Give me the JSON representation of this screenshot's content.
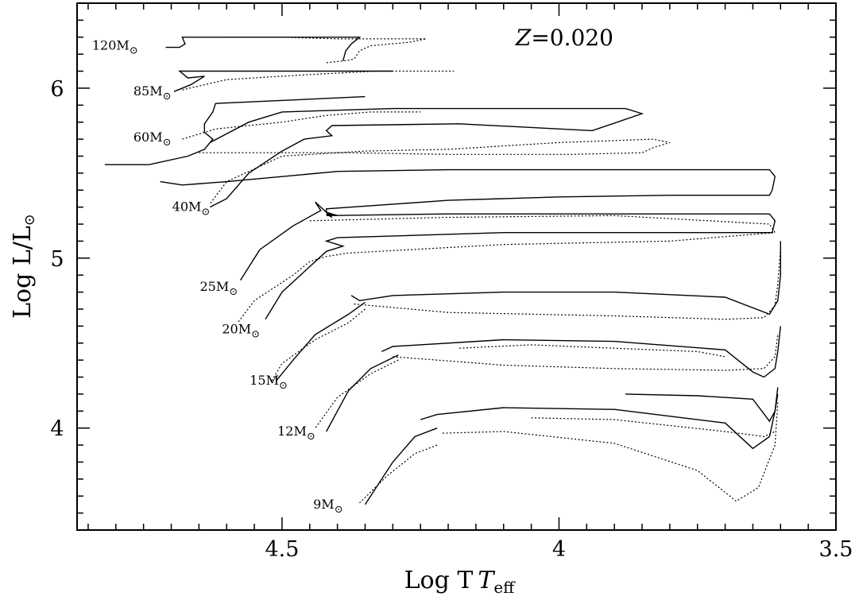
{
  "chart_data": {
    "type": "line",
    "title": "",
    "xlabel": "Log T",
    "xlabel_sub": "eff",
    "ylabel": "Log L/L",
    "ylabel_sub": "⊙",
    "xlim": [
      4.87,
      3.5
    ],
    "ylim": [
      3.4,
      6.5
    ],
    "x_reversed": true,
    "x_ticks": [
      4.5,
      4.0,
      3.5
    ],
    "x_tick_labels": [
      "4.5",
      "4",
      "3.5"
    ],
    "y_ticks": [
      4,
      5,
      6
    ],
    "y_tick_labels": [
      "4",
      "5",
      "6"
    ],
    "grid": false,
    "annotation": {
      "text": "Z=0.020",
      "italic_part": "Z",
      "rest": "=0.020",
      "x": 3.99,
      "y": 6.3
    },
    "mass_labels": [
      {
        "text": "120M",
        "sun": "⊙",
        "x": 4.76,
        "y": 6.25
      },
      {
        "text": "85M",
        "sun": "⊙",
        "x": 4.7,
        "y": 5.98
      },
      {
        "text": "60M",
        "sun": "⊙",
        "x": 4.7,
        "y": 5.71
      },
      {
        "text": "40M",
        "sun": "⊙",
        "x": 4.63,
        "y": 5.3
      },
      {
        "text": "25M",
        "sun": "⊙",
        "x": 4.58,
        "y": 4.83
      },
      {
        "text": "20M",
        "sun": "⊙",
        "x": 4.54,
        "y": 4.58
      },
      {
        "text": "15M",
        "sun": "⊙",
        "x": 4.49,
        "y": 4.28
      },
      {
        "text": "12M",
        "sun": "⊙",
        "x": 4.44,
        "y": 3.98
      },
      {
        "text": "9M",
        "sun": "⊙",
        "x": 4.39,
        "y": 3.55
      }
    ],
    "series": [
      {
        "style": "solid",
        "points": [
          [
            4.71,
            6.24
          ],
          [
            4.685,
            6.24
          ],
          [
            4.675,
            6.26
          ],
          [
            4.68,
            6.3
          ],
          [
            4.6,
            6.3
          ],
          [
            4.52,
            6.3
          ],
          [
            4.4,
            6.3
          ],
          [
            4.36,
            6.3
          ],
          [
            4.375,
            6.26
          ],
          [
            4.385,
            6.22
          ],
          [
            4.39,
            6.16
          ]
        ]
      },
      {
        "style": "dotted",
        "points": [
          [
            4.6,
            6.3
          ],
          [
            4.5,
            6.3
          ],
          [
            4.4,
            6.29
          ],
          [
            4.33,
            6.29
          ],
          [
            4.24,
            6.29
          ],
          [
            4.27,
            6.27
          ],
          [
            4.34,
            6.25
          ],
          [
            4.36,
            6.22
          ],
          [
            4.37,
            6.17
          ],
          [
            4.39,
            6.16
          ],
          [
            4.42,
            6.15
          ]
        ]
      },
      {
        "style": "solid",
        "points": [
          [
            4.695,
            5.98
          ],
          [
            4.665,
            6.02
          ],
          [
            4.64,
            6.07
          ],
          [
            4.67,
            6.06
          ],
          [
            4.685,
            6.1
          ],
          [
            4.55,
            6.1
          ],
          [
            4.4,
            6.1
          ],
          [
            4.3,
            6.1
          ]
        ]
      },
      {
        "style": "dotted",
        "points": [
          [
            4.68,
            5.99
          ],
          [
            4.6,
            6.05
          ],
          [
            4.45,
            6.08
          ],
          [
            4.33,
            6.1
          ],
          [
            4.19,
            6.1
          ]
        ]
      },
      {
        "style": "solid",
        "points": [
          [
            4.82,
            5.55
          ],
          [
            4.74,
            5.55
          ],
          [
            4.67,
            5.6
          ],
          [
            4.64,
            5.64
          ],
          [
            4.625,
            5.7
          ],
          [
            4.64,
            5.74
          ],
          [
            4.64,
            5.79
          ],
          [
            4.625,
            5.86
          ],
          [
            4.62,
            5.91
          ],
          [
            4.35,
            5.95
          ]
        ]
      },
      {
        "style": "dotted",
        "points": [
          [
            4.68,
            5.7
          ],
          [
            4.62,
            5.76
          ],
          [
            4.5,
            5.8
          ],
          [
            4.42,
            5.84
          ],
          [
            4.34,
            5.86
          ],
          [
            4.25,
            5.86
          ]
        ]
      },
      {
        "style": "solid",
        "points": [
          [
            4.63,
            5.68
          ],
          [
            4.56,
            5.8
          ],
          [
            4.5,
            5.86
          ],
          [
            4.3,
            5.88
          ],
          [
            4.0,
            5.88
          ],
          [
            3.88,
            5.88
          ],
          [
            3.85,
            5.85
          ],
          [
            3.94,
            5.75
          ],
          [
            4.18,
            5.79
          ],
          [
            4.41,
            5.78
          ],
          [
            4.42,
            5.75
          ],
          [
            4.41,
            5.72
          ],
          [
            4.46,
            5.7
          ],
          [
            4.5,
            5.63
          ],
          [
            4.56,
            5.5
          ],
          [
            4.6,
            5.35
          ],
          [
            4.63,
            5.3
          ]
        ]
      },
      {
        "style": "dotted",
        "points": [
          [
            4.65,
            5.62
          ],
          [
            4.55,
            5.62
          ],
          [
            4.38,
            5.62
          ],
          [
            4.2,
            5.61
          ],
          [
            3.98,
            5.61
          ],
          [
            3.85,
            5.62
          ],
          [
            3.83,
            5.65
          ],
          [
            3.8,
            5.68
          ],
          [
            3.83,
            5.7
          ],
          [
            4.0,
            5.68
          ],
          [
            4.2,
            5.64
          ],
          [
            4.35,
            5.63
          ],
          [
            4.5,
            5.6
          ],
          [
            4.6,
            5.45
          ],
          [
            4.63,
            5.32
          ]
        ]
      },
      {
        "style": "solid",
        "points": [
          [
            4.72,
            5.45
          ],
          [
            4.68,
            5.43
          ],
          [
            4.6,
            5.45
          ],
          [
            4.4,
            5.51
          ],
          [
            4.2,
            5.52
          ],
          [
            4.0,
            5.52
          ],
          [
            3.8,
            5.52
          ],
          [
            3.62,
            5.52
          ],
          [
            3.61,
            5.48
          ],
          [
            3.615,
            5.4
          ],
          [
            3.62,
            5.37
          ],
          [
            3.8,
            5.37
          ],
          [
            4.0,
            5.36
          ],
          [
            4.2,
            5.34
          ],
          [
            4.42,
            5.29
          ],
          [
            4.42,
            5.27
          ],
          [
            4.4,
            5.25
          ],
          [
            4.42,
            5.26
          ],
          [
            4.41,
            5.24
          ],
          [
            4.43,
            5.3
          ],
          [
            4.44,
            5.33
          ],
          [
            4.43,
            5.28
          ],
          [
            4.48,
            5.19
          ],
          [
            4.54,
            5.05
          ],
          [
            4.575,
            4.87
          ]
        ]
      },
      {
        "style": "solid",
        "points": [
          [
            4.42,
            5.25
          ],
          [
            4.2,
            5.26
          ],
          [
            3.9,
            5.26
          ],
          [
            3.62,
            5.26
          ],
          [
            3.61,
            5.22
          ],
          [
            3.615,
            5.15
          ],
          [
            3.8,
            5.15
          ],
          [
            4.1,
            5.15
          ],
          [
            4.4,
            5.12
          ],
          [
            4.42,
            5.1
          ],
          [
            4.39,
            5.07
          ],
          [
            4.42,
            5.04
          ],
          [
            4.45,
            4.95
          ],
          [
            4.5,
            4.8
          ],
          [
            4.53,
            4.64
          ]
        ]
      },
      {
        "style": "dotted",
        "points": [
          [
            4.45,
            5.22
          ],
          [
            4.2,
            5.24
          ],
          [
            3.9,
            5.25
          ],
          [
            3.62,
            5.2
          ],
          [
            3.61,
            5.15
          ],
          [
            3.8,
            5.1
          ],
          [
            4.1,
            5.08
          ],
          [
            4.38,
            5.03
          ],
          [
            4.42,
            5.01
          ],
          [
            4.45,
            4.98
          ],
          [
            4.48,
            4.9
          ],
          [
            4.55,
            4.75
          ],
          [
            4.58,
            4.62
          ]
        ]
      },
      {
        "style": "solid",
        "points": [
          [
            4.375,
            4.78
          ],
          [
            4.36,
            4.75
          ],
          [
            4.3,
            4.78
          ],
          [
            4.1,
            4.8
          ],
          [
            3.9,
            4.8
          ],
          [
            3.7,
            4.77
          ],
          [
            3.62,
            4.67
          ],
          [
            3.605,
            4.75
          ],
          [
            3.6,
            4.9
          ],
          [
            3.6,
            5.1
          ]
        ]
      },
      {
        "style": "dotted",
        "points": [
          [
            4.37,
            4.73
          ],
          [
            4.2,
            4.68
          ],
          [
            3.9,
            4.66
          ],
          [
            3.7,
            4.64
          ],
          [
            3.63,
            4.65
          ],
          [
            3.61,
            4.72
          ],
          [
            3.605,
            4.85
          ],
          [
            3.6,
            5.05
          ]
        ]
      },
      {
        "style": "solid",
        "points": [
          [
            4.35,
            4.74
          ],
          [
            4.38,
            4.67
          ],
          [
            4.44,
            4.55
          ],
          [
            4.48,
            4.4
          ],
          [
            4.51,
            4.28
          ]
        ]
      },
      {
        "style": "dotted",
        "points": [
          [
            4.35,
            4.7
          ],
          [
            4.38,
            4.62
          ],
          [
            4.44,
            4.52
          ],
          [
            4.5,
            4.38
          ],
          [
            4.52,
            4.27
          ]
        ]
      },
      {
        "style": "solid",
        "points": [
          [
            4.32,
            4.45
          ],
          [
            4.3,
            4.48
          ],
          [
            4.1,
            4.52
          ],
          [
            3.9,
            4.51
          ],
          [
            3.7,
            4.46
          ],
          [
            3.65,
            4.33
          ],
          [
            3.63,
            4.3
          ],
          [
            3.61,
            4.35
          ],
          [
            3.605,
            4.45
          ],
          [
            3.6,
            4.6
          ]
        ]
      },
      {
        "style": "dotted",
        "points": [
          [
            4.3,
            4.42
          ],
          [
            4.1,
            4.37
          ],
          [
            3.9,
            4.35
          ],
          [
            3.7,
            4.34
          ],
          [
            3.63,
            4.35
          ],
          [
            3.61,
            4.42
          ],
          [
            3.605,
            4.55
          ]
        ]
      },
      {
        "style": "dotted",
        "points": [
          [
            4.18,
            4.47
          ],
          [
            4.05,
            4.49
          ],
          [
            3.9,
            4.47
          ],
          [
            3.75,
            4.45
          ],
          [
            3.7,
            4.42
          ]
        ]
      },
      {
        "style": "solid",
        "points": [
          [
            4.29,
            4.43
          ],
          [
            4.34,
            4.35
          ],
          [
            4.38,
            4.22
          ],
          [
            4.4,
            4.1
          ],
          [
            4.42,
            3.98
          ]
        ]
      },
      {
        "style": "dotted",
        "points": [
          [
            4.29,
            4.4
          ],
          [
            4.34,
            4.32
          ],
          [
            4.4,
            4.18
          ],
          [
            4.44,
            4.0
          ]
        ]
      },
      {
        "style": "solid",
        "points": [
          [
            3.88,
            4.2
          ],
          [
            3.75,
            4.19
          ],
          [
            3.65,
            4.17
          ],
          [
            3.62,
            4.04
          ],
          [
            3.61,
            4.1
          ],
          [
            3.605,
            4.2
          ]
        ]
      },
      {
        "style": "solid",
        "points": [
          [
            4.25,
            4.05
          ],
          [
            4.22,
            4.08
          ],
          [
            4.1,
            4.12
          ],
          [
            3.9,
            4.11
          ],
          [
            3.7,
            4.03
          ],
          [
            3.65,
            3.88
          ],
          [
            3.62,
            3.95
          ],
          [
            3.61,
            4.1
          ],
          [
            3.605,
            4.24
          ]
        ]
      },
      {
        "style": "dotted",
        "points": [
          [
            4.21,
            3.97
          ],
          [
            4.1,
            3.98
          ],
          [
            3.9,
            3.91
          ],
          [
            3.75,
            3.75
          ],
          [
            3.68,
            3.57
          ],
          [
            3.64,
            3.65
          ],
          [
            3.61,
            3.9
          ],
          [
            3.605,
            4.15
          ]
        ]
      },
      {
        "style": "dotted",
        "points": [
          [
            4.05,
            4.06
          ],
          [
            3.9,
            4.05
          ],
          [
            3.7,
            3.98
          ],
          [
            3.63,
            3.95
          ],
          [
            3.61,
            3.98
          ]
        ]
      },
      {
        "style": "solid",
        "points": [
          [
            4.22,
            4.0
          ],
          [
            4.26,
            3.95
          ],
          [
            4.3,
            3.8
          ],
          [
            4.33,
            3.65
          ],
          [
            4.35,
            3.55
          ]
        ]
      },
      {
        "style": "dotted",
        "points": [
          [
            4.22,
            3.9
          ],
          [
            4.26,
            3.85
          ],
          [
            4.31,
            3.72
          ],
          [
            4.36,
            3.56
          ]
        ]
      }
    ]
  }
}
